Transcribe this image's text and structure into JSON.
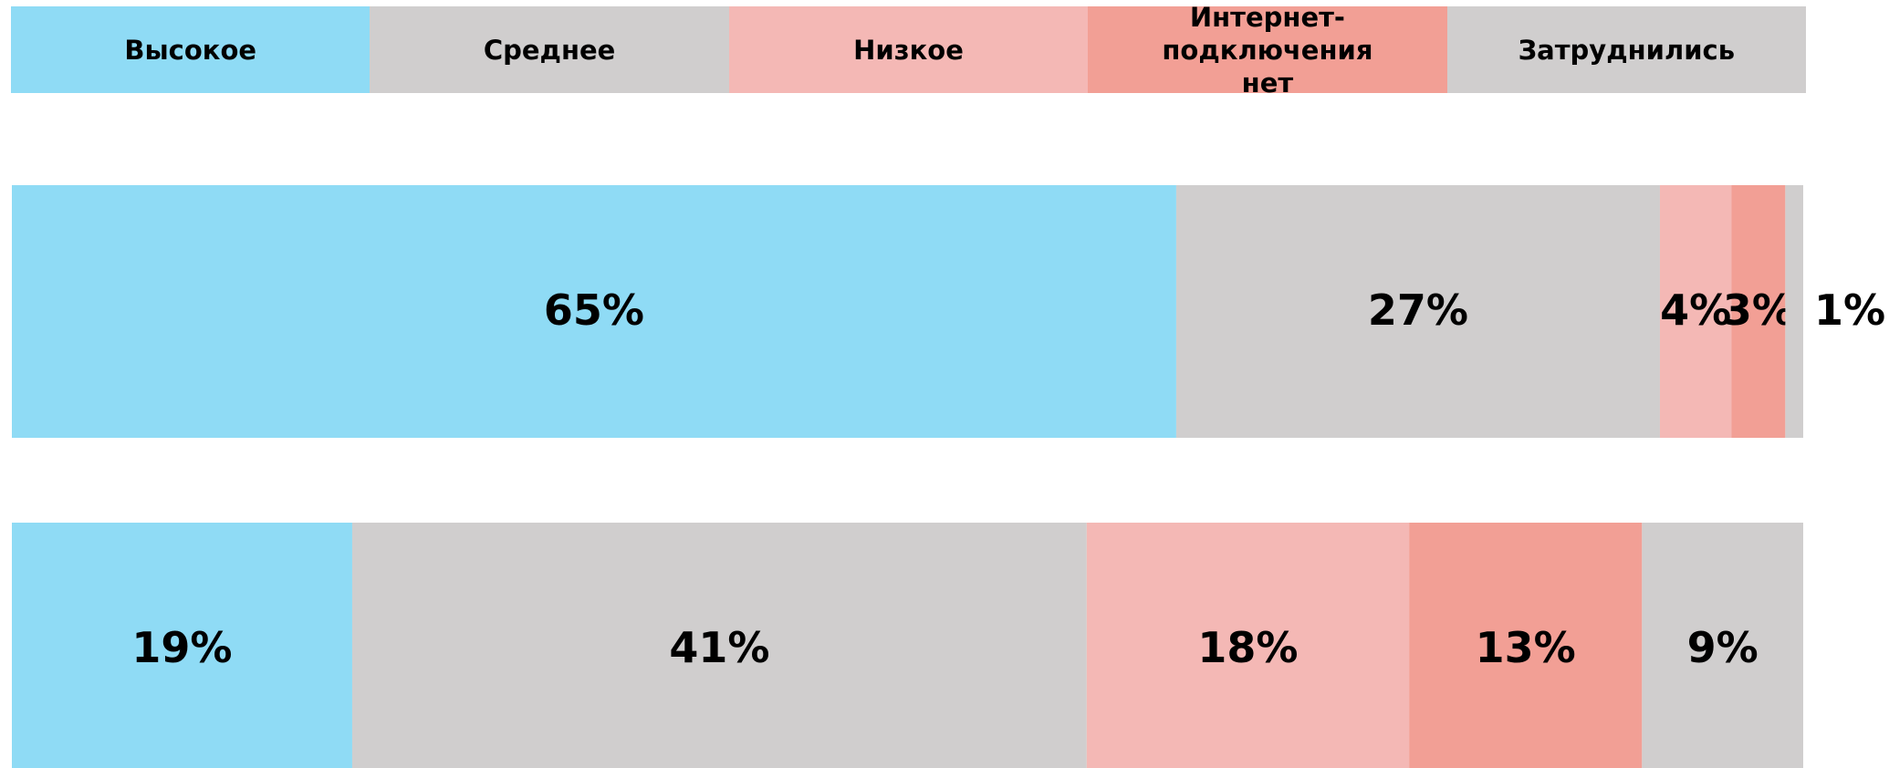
{
  "chart_data": {
    "type": "bar",
    "orientation": "horizontal",
    "stacked": true,
    "categories": [
      null,
      null
    ],
    "series": [
      {
        "name": "Высокое",
        "color": "#8fdbf5",
        "values": [
          65,
          19
        ],
        "value_labels": [
          "65%",
          "19%"
        ]
      },
      {
        "name": "Среднее",
        "color": "#d0cece",
        "values": [
          27,
          41
        ],
        "value_labels": [
          "27%",
          "41%"
        ]
      },
      {
        "name": "Низкое",
        "color": "#f4b8b5",
        "values": [
          4,
          18
        ],
        "value_labels": [
          "4%",
          "18%"
        ]
      },
      {
        "name": "Интернет-подключения нет",
        "color": "#f29f95",
        "values": [
          3,
          13
        ],
        "value_labels": [
          "3%",
          "13%"
        ]
      },
      {
        "name": "Затруднились",
        "color": "#d0cece",
        "values": [
          1,
          9
        ],
        "value_labels": [
          "1%",
          "9%"
        ]
      }
    ],
    "xlim": [
      0,
      100
    ],
    "legend": "top"
  }
}
